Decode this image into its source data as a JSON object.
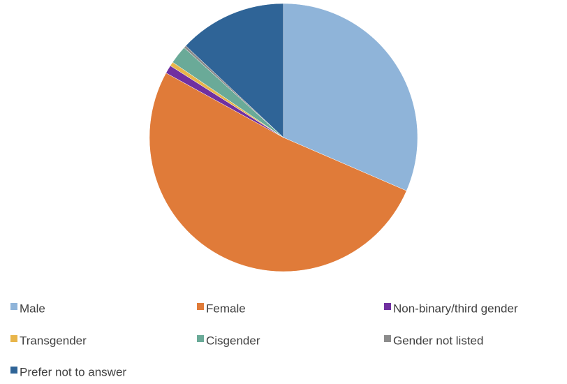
{
  "chart_data": {
    "type": "pie",
    "categories": [
      "Male",
      "Female",
      "Non-binary/third gender",
      "Transgender",
      "Cisgender",
      "Gender not listed",
      "Prefer not to answer"
    ],
    "values": [
      31.5,
      51.5,
      1,
      0.5,
      2.2,
      0.3,
      13
    ],
    "colors": [
      "#8fb4d9",
      "#e07b39",
      "#7030a0",
      "#e8b54a",
      "#6aaa98",
      "#8c8c8c",
      "#2f6497"
    ],
    "legend": "bottom"
  }
}
